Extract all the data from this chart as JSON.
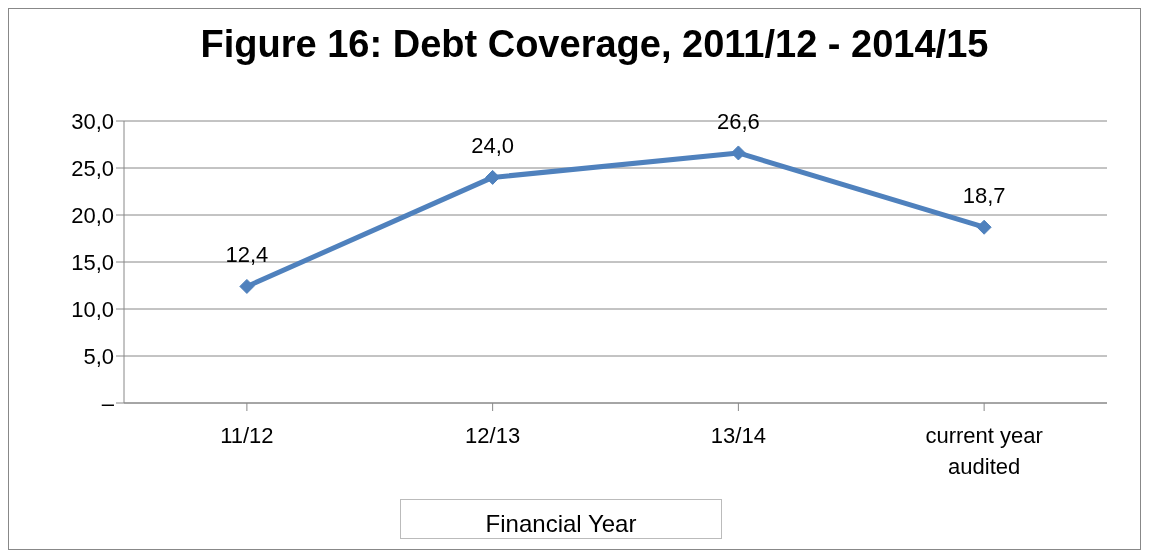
{
  "chart_data": {
    "type": "line",
    "title": "Figure 16: Debt Coverage, 2011/12 - 2014/15",
    "xlabel": "Financial Year",
    "categories": [
      "11/12",
      "12/13",
      "13/14",
      "current year audited"
    ],
    "series": [
      {
        "color": "#4f81bd",
        "values": [
          12.4,
          24.0,
          26.6,
          18.7
        ],
        "value_labels": [
          "12,4",
          "24,0",
          "26,6",
          "18,7"
        ]
      }
    ],
    "ylim": [
      0,
      30
    ],
    "yticks": [
      {
        "value": 0,
        "label": "–"
      },
      {
        "value": 5,
        "label": "5,0"
      },
      {
        "value": 10,
        "label": "10,0"
      },
      {
        "value": 15,
        "label": "15,0"
      },
      {
        "value": 20,
        "label": "20,0"
      },
      {
        "value": 25,
        "label": "25,0"
      },
      {
        "value": 30,
        "label": "30,0"
      }
    ],
    "grid": "y",
    "marker": "diamond",
    "line_style": "solid",
    "legend": false
  }
}
